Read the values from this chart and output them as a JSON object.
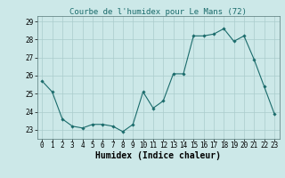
{
  "x": [
    0,
    1,
    2,
    3,
    4,
    5,
    6,
    7,
    8,
    9,
    10,
    11,
    12,
    13,
    14,
    15,
    16,
    17,
    18,
    19,
    20,
    21,
    22,
    23
  ],
  "y": [
    25.7,
    25.1,
    23.6,
    23.2,
    23.1,
    23.3,
    23.3,
    23.2,
    22.9,
    23.3,
    25.1,
    24.2,
    24.6,
    26.1,
    26.1,
    28.2,
    28.2,
    28.3,
    28.6,
    27.9,
    28.2,
    26.9,
    25.4,
    23.9
  ],
  "title": "Courbe de l'humidex pour Le Mans (72)",
  "xlabel": "Humidex (Indice chaleur)",
  "xlim": [
    -0.5,
    23.5
  ],
  "ylim": [
    22.5,
    29.3
  ],
  "yticks": [
    23,
    24,
    25,
    26,
    27,
    28,
    29
  ],
  "xticks": [
    0,
    1,
    2,
    3,
    4,
    5,
    6,
    7,
    8,
    9,
    10,
    11,
    12,
    13,
    14,
    15,
    16,
    17,
    18,
    19,
    20,
    21,
    22,
    23
  ],
  "line_color": "#1a6b6b",
  "marker": "D",
  "marker_size": 1.8,
  "bg_color": "#cce8e8",
  "grid_color": "#aacccc",
  "title_fontsize": 6.5,
  "label_fontsize": 7,
  "tick_fontsize": 5.5
}
